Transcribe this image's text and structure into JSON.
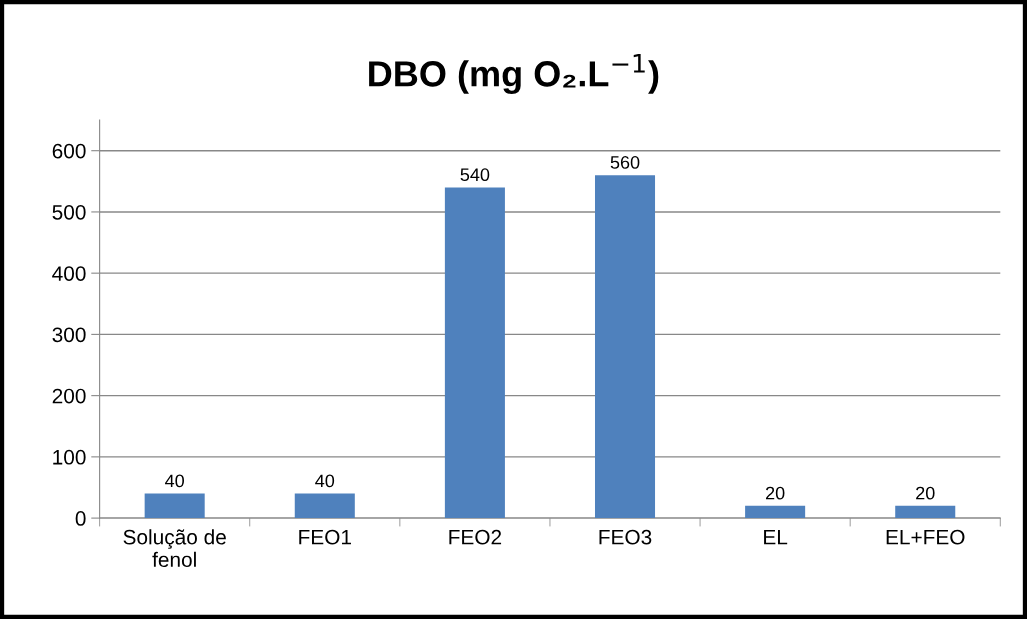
{
  "chart_data": {
    "type": "bar",
    "title": "DBO (mg O₂.L$^{−1}$)",
    "categories": [
      "Solução de\nfenol",
      "FEO1",
      "FEO2",
      "FEO3",
      "EL",
      "EL+FEO"
    ],
    "values": [
      40,
      40,
      540,
      560,
      20,
      20
    ],
    "color": "#4f81bd",
    "ylim": [
      0,
      650
    ],
    "yticks": [
      0,
      100,
      200,
      300,
      400,
      500,
      600
    ],
    "grid": "y",
    "data_labels": true,
    "legend": false
  }
}
